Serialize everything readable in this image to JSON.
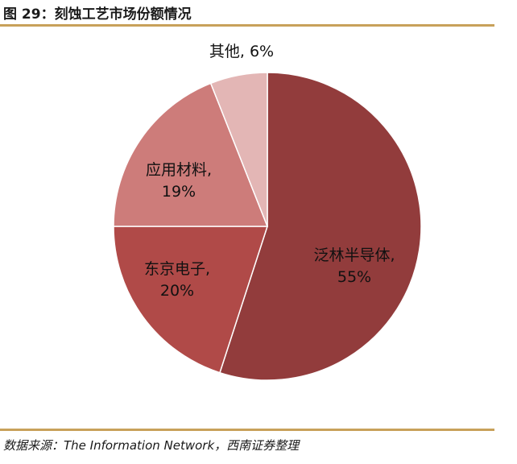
{
  "title": "图 29：刻蚀工艺市场份额情况",
  "source": "数据来源：The Information Network，西南证券整理",
  "colors": {
    "rule": "#c8a15a"
  },
  "chart_data": {
    "type": "pie",
    "start_angle_deg": 0,
    "direction": "clockwise",
    "slices": [
      {
        "name": "泛林半导体",
        "value": 55,
        "label_line1": "泛林半导体,",
        "label_line2": "55%",
        "color": "#923c3c"
      },
      {
        "name": "东京电子",
        "value": 20,
        "label_line1": "东京电子,",
        "label_line2": "20%",
        "color": "#b04a48"
      },
      {
        "name": "应用材料",
        "value": 19,
        "label_line1": "应用材料,",
        "label_line2": "19%",
        "color": "#cd7c7a"
      },
      {
        "name": "其他",
        "value": 6,
        "label_line1": "其他, 6%",
        "label_line2": "",
        "color": "#e3b6b5"
      }
    ]
  }
}
